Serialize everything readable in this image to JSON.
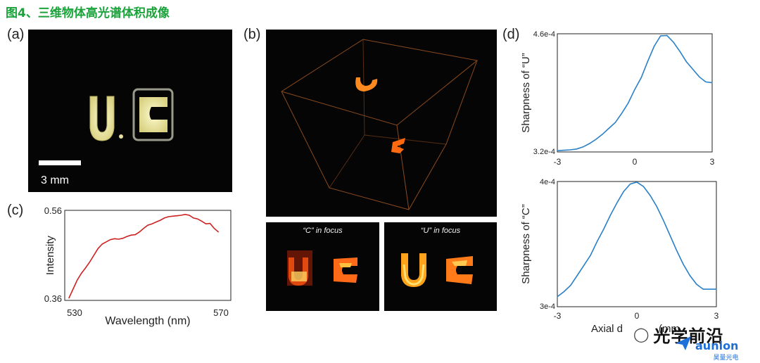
{
  "figure_title": "图4、三维物体高光谱体积成像",
  "panels": {
    "a": {
      "label": "(a)",
      "scale_bar_text": "3 mm"
    },
    "b": {
      "label": "(b)",
      "inset_left_caption": "“C” in focus",
      "inset_right_caption": "“U” in focus"
    },
    "c": {
      "label": "(c)"
    },
    "d": {
      "label": "(d)"
    }
  },
  "chart_data": [
    {
      "id": "c",
      "type": "line",
      "xlabel": "Wavelength (nm)",
      "ylabel": "Intensity",
      "xlim": [
        530,
        570
      ],
      "ylim": [
        0.36,
        0.56
      ],
      "x_ticks": [
        "530",
        "570"
      ],
      "y_ticks": [
        "0.56",
        "0.36"
      ],
      "color": "#cc2222",
      "x": [
        531,
        532,
        533,
        534,
        535,
        536,
        537,
        538,
        539,
        540,
        541,
        542,
        543,
        544,
        545,
        546,
        547,
        548,
        549,
        550,
        551,
        552,
        553,
        554,
        555,
        556,
        557,
        558,
        559,
        560,
        561,
        562,
        563,
        564,
        565,
        566,
        567
      ],
      "y": [
        0.365,
        0.385,
        0.405,
        0.42,
        0.432,
        0.445,
        0.46,
        0.475,
        0.485,
        0.49,
        0.495,
        0.497,
        0.496,
        0.498,
        0.502,
        0.505,
        0.506,
        0.512,
        0.52,
        0.527,
        0.53,
        0.534,
        0.538,
        0.543,
        0.546,
        0.547,
        0.548,
        0.549,
        0.551,
        0.549,
        0.543,
        0.541,
        0.536,
        0.53,
        0.531,
        0.52,
        0.512
      ]
    },
    {
      "id": "d-top",
      "type": "line",
      "ylabel": "Sharpness of “U”",
      "xlim": [
        -3,
        3
      ],
      "ylim": [
        0.00032,
        0.00046
      ],
      "x_ticks": [
        "-3",
        "0",
        "3"
      ],
      "y_ticks": [
        "4.6e-4",
        "3.2e-4"
      ],
      "color": "#2a80c8",
      "x": [
        -3.0,
        -2.75,
        -2.5,
        -2.25,
        -2.0,
        -1.75,
        -1.5,
        -1.25,
        -1.0,
        -0.75,
        -0.5,
        -0.25,
        0.0,
        0.25,
        0.5,
        0.75,
        1.0,
        1.25,
        1.5,
        1.75,
        2.0,
        2.25,
        2.5,
        2.75,
        3.0
      ],
      "y": [
        0.0003215,
        0.000322,
        0.0003225,
        0.0003235,
        0.000326,
        0.00033,
        0.000335,
        0.000341,
        0.000348,
        0.000355,
        0.000366,
        0.000378,
        0.000394,
        0.000408,
        0.000427,
        0.000445,
        0.0004575,
        0.000458,
        0.00045,
        0.000439,
        0.000427,
        0.000418,
        0.000409,
        0.000403,
        0.000402
      ]
    },
    {
      "id": "d-bottom",
      "type": "line",
      "xlabel": "Axial d",
      "ylabel": "Sharpness of “C”",
      "xlim": [
        -3,
        3
      ],
      "ylim": [
        0.0003,
        0.0004
      ],
      "x_ticks": [
        "-3",
        "0",
        "3"
      ],
      "y_ticks": [
        "4e-4",
        "3e-4"
      ],
      "color": "#2a80c8",
      "x": [
        -3.0,
        -2.75,
        -2.5,
        -2.25,
        -2.0,
        -1.75,
        -1.5,
        -1.25,
        -1.0,
        -0.75,
        -0.5,
        -0.25,
        0.0,
        0.25,
        0.5,
        0.75,
        1.0,
        1.25,
        1.5,
        1.75,
        2.0,
        2.25,
        2.5,
        2.75,
        3.0
      ],
      "y": [
        0.000308,
        0.000312,
        0.000317,
        0.000325,
        0.000333,
        0.000341,
        0.000352,
        0.000362,
        0.000373,
        0.000383,
        0.000392,
        0.000398,
        0.0003995,
        0.000396,
        0.000389,
        0.00038,
        0.000369,
        0.000357,
        0.000345,
        0.000334,
        0.000325,
        0.000318,
        0.000314,
        0.000314,
        0.000314
      ]
    }
  ],
  "watermark": {
    "text": "光学前沿",
    "brand": "aunion",
    "brand_sub": "昊量光电",
    "partial_unit_text": "(mm"
  }
}
